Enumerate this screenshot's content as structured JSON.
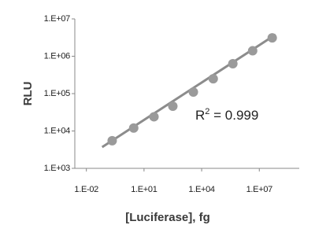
{
  "chart_data": {
    "type": "scatter",
    "x_label": "[Luciferase], fg",
    "y_label": "RLU",
    "x_log": true,
    "y_log": true,
    "grid": false,
    "xlim": [
      0.0025,
      1200000000
    ],
    "ylim": [
      1000,
      10000000
    ],
    "xticks": [
      {
        "value": 0.01,
        "label": "1.E-02"
      },
      {
        "value": 10,
        "label": "1.E+01"
      },
      {
        "value": 10000,
        "label": "1.E+04"
      },
      {
        "value": 10000000,
        "label": "1.E+07"
      }
    ],
    "yticks": [
      {
        "value": 1000,
        "label": "1.E+03"
      },
      {
        "value": 10000,
        "label": "1.E+04"
      },
      {
        "value": 100000,
        "label": "1.E+05"
      },
      {
        "value": 1000000,
        "label": "1.E+06"
      },
      {
        "value": 10000000,
        "label": "1.E+07"
      }
    ],
    "series": [
      {
        "color": "#9a9a9a",
        "x": [
          0.22,
          2.9,
          33,
          316,
          3700,
          40000,
          420000,
          4500000,
          47000000
        ],
        "values": [
          5500,
          12000,
          24000,
          46000,
          110000,
          250000,
          630000,
          1400000,
          3100000
        ]
      }
    ],
    "trendline": {
      "color": "#8c8c8c",
      "x": [
        0.066,
        70000000
      ],
      "values": [
        3700,
        3800000
      ]
    },
    "annotation": {
      "base": "R",
      "sup": "2",
      "rest": " = 0.999"
    }
  }
}
